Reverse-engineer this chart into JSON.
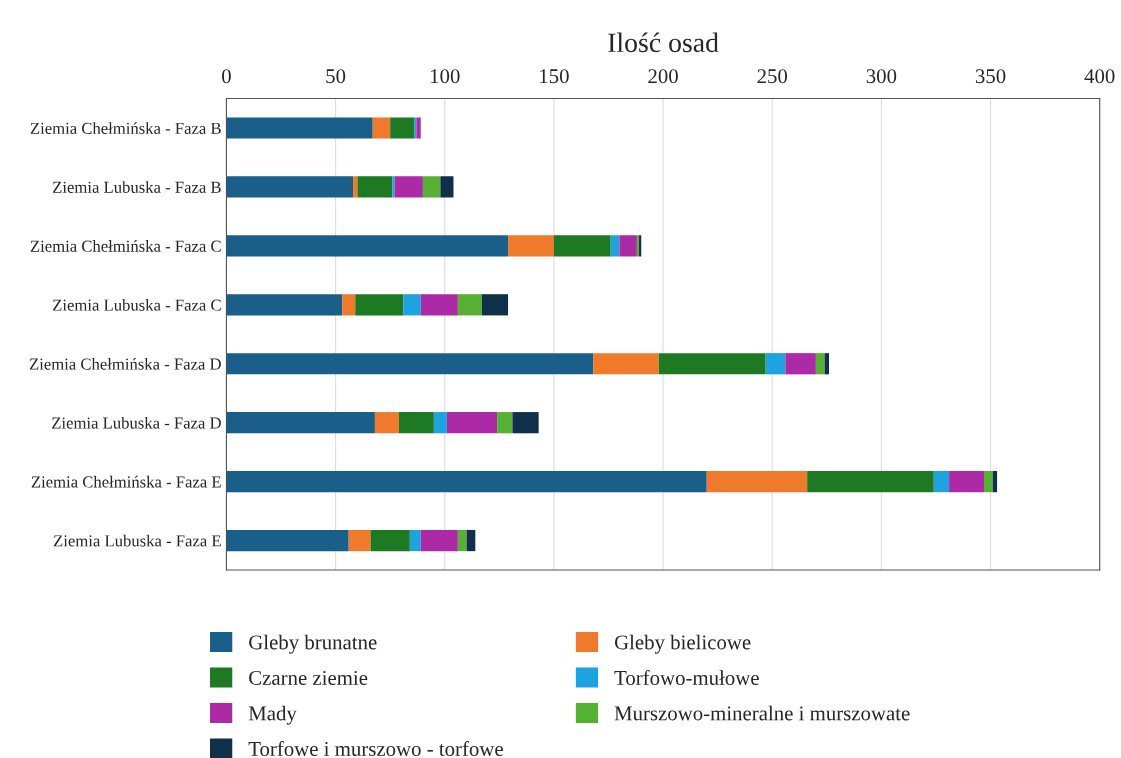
{
  "chart_data": {
    "type": "bar",
    "orientation": "horizontal",
    "stacked": true,
    "xlabel": "Ilość osad",
    "categories": [
      "Ziemia Chełmińska - Faza B",
      "Ziemia Lubuska - Faza B",
      "Ziemia Chełmińska - Faza C",
      "Ziemia Lubuska - Faza C",
      "Ziemia Chełmińska - Faza D",
      "Ziemia Lubuska - Faza D",
      "Ziemia Chełmińska - Faza E",
      "Ziemia Lubuska - Faza E"
    ],
    "series": [
      {
        "name": "Gleby brunatne",
        "color": "#1a5e8a",
        "values": [
          67,
          58,
          129,
          53,
          168,
          68,
          220,
          56
        ]
      },
      {
        "name": "Gleby bielicowe",
        "color": "#f07a2c",
        "values": [
          8,
          2,
          21,
          6,
          30,
          11,
          46,
          10
        ]
      },
      {
        "name": "Czarne ziemie",
        "color": "#1e7a22",
        "values": [
          11,
          16,
          26,
          22,
          49,
          16,
          58,
          18
        ]
      },
      {
        "name": "Torfowo-mułowe",
        "color": "#1ea2e0",
        "values": [
          1,
          1,
          4,
          8,
          9,
          6,
          7,
          5
        ]
      },
      {
        "name": "Mady",
        "color": "#ad2aa6",
        "values": [
          2,
          13,
          8,
          17,
          14,
          23,
          16,
          17
        ]
      },
      {
        "name": "Murszowo-mineralne i murszowate",
        "color": "#56b033",
        "values": [
          0,
          8,
          1,
          11,
          4,
          7,
          4,
          4
        ]
      },
      {
        "name": "Torfowe i murszowo - torfowe",
        "color": "#102f4b",
        "values": [
          0,
          6,
          1,
          12,
          2,
          12,
          2,
          4
        ]
      }
    ],
    "xlim": [
      0,
      400
    ],
    "xticks": [
      0,
      50,
      100,
      150,
      200,
      250,
      300,
      350,
      400
    ],
    "grid": "x",
    "legend": "bottom"
  }
}
